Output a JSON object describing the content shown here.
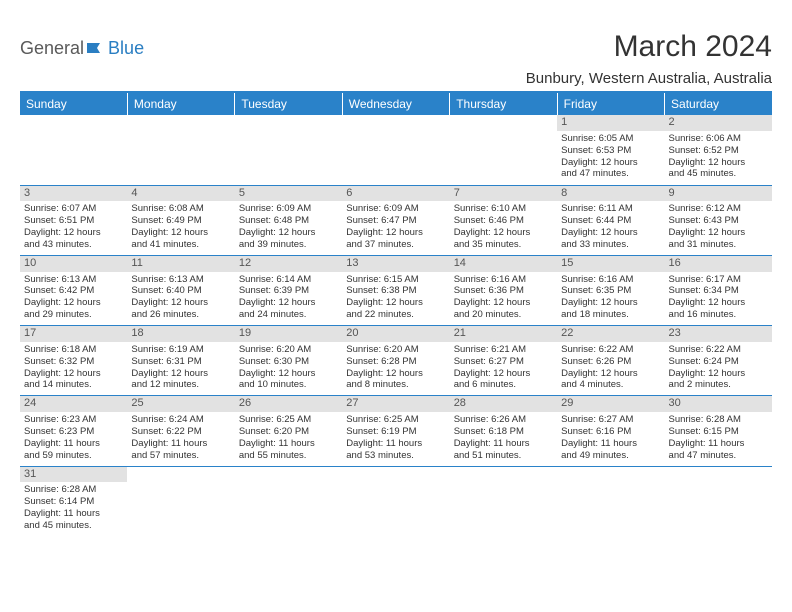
{
  "logo": {
    "text1": "General",
    "text2": "Blue"
  },
  "title": "March 2024",
  "location": "Bunbury, Western Australia, Australia",
  "colors": {
    "header_bg": "#2a82c9",
    "header_text": "#ffffff",
    "daynum_bg": "#e2e2e2",
    "border": "#2a82c9",
    "logo_gray": "#5a5a5a",
    "logo_blue": "#2a7ec2"
  },
  "day_headers": [
    "Sunday",
    "Monday",
    "Tuesday",
    "Wednesday",
    "Thursday",
    "Friday",
    "Saturday"
  ],
  "weeks": [
    [
      {
        "day": "",
        "lines": [
          "",
          "",
          "",
          ""
        ],
        "empty": true
      },
      {
        "day": "",
        "lines": [
          "",
          "",
          "",
          ""
        ],
        "empty": true
      },
      {
        "day": "",
        "lines": [
          "",
          "",
          "",
          ""
        ],
        "empty": true
      },
      {
        "day": "",
        "lines": [
          "",
          "",
          "",
          ""
        ],
        "empty": true
      },
      {
        "day": "",
        "lines": [
          "",
          "",
          "",
          ""
        ],
        "empty": true
      },
      {
        "day": "1",
        "lines": [
          "Sunrise: 6:05 AM",
          "Sunset: 6:53 PM",
          "Daylight: 12 hours",
          "and 47 minutes."
        ]
      },
      {
        "day": "2",
        "lines": [
          "Sunrise: 6:06 AM",
          "Sunset: 6:52 PM",
          "Daylight: 12 hours",
          "and 45 minutes."
        ]
      }
    ],
    [
      {
        "day": "3",
        "lines": [
          "Sunrise: 6:07 AM",
          "Sunset: 6:51 PM",
          "Daylight: 12 hours",
          "and 43 minutes."
        ]
      },
      {
        "day": "4",
        "lines": [
          "Sunrise: 6:08 AM",
          "Sunset: 6:49 PM",
          "Daylight: 12 hours",
          "and 41 minutes."
        ]
      },
      {
        "day": "5",
        "lines": [
          "Sunrise: 6:09 AM",
          "Sunset: 6:48 PM",
          "Daylight: 12 hours",
          "and 39 minutes."
        ]
      },
      {
        "day": "6",
        "lines": [
          "Sunrise: 6:09 AM",
          "Sunset: 6:47 PM",
          "Daylight: 12 hours",
          "and 37 minutes."
        ]
      },
      {
        "day": "7",
        "lines": [
          "Sunrise: 6:10 AM",
          "Sunset: 6:46 PM",
          "Daylight: 12 hours",
          "and 35 minutes."
        ]
      },
      {
        "day": "8",
        "lines": [
          "Sunrise: 6:11 AM",
          "Sunset: 6:44 PM",
          "Daylight: 12 hours",
          "and 33 minutes."
        ]
      },
      {
        "day": "9",
        "lines": [
          "Sunrise: 6:12 AM",
          "Sunset: 6:43 PM",
          "Daylight: 12 hours",
          "and 31 minutes."
        ]
      }
    ],
    [
      {
        "day": "10",
        "lines": [
          "Sunrise: 6:13 AM",
          "Sunset: 6:42 PM",
          "Daylight: 12 hours",
          "and 29 minutes."
        ]
      },
      {
        "day": "11",
        "lines": [
          "Sunrise: 6:13 AM",
          "Sunset: 6:40 PM",
          "Daylight: 12 hours",
          "and 26 minutes."
        ]
      },
      {
        "day": "12",
        "lines": [
          "Sunrise: 6:14 AM",
          "Sunset: 6:39 PM",
          "Daylight: 12 hours",
          "and 24 minutes."
        ]
      },
      {
        "day": "13",
        "lines": [
          "Sunrise: 6:15 AM",
          "Sunset: 6:38 PM",
          "Daylight: 12 hours",
          "and 22 minutes."
        ]
      },
      {
        "day": "14",
        "lines": [
          "Sunrise: 6:16 AM",
          "Sunset: 6:36 PM",
          "Daylight: 12 hours",
          "and 20 minutes."
        ]
      },
      {
        "day": "15",
        "lines": [
          "Sunrise: 6:16 AM",
          "Sunset: 6:35 PM",
          "Daylight: 12 hours",
          "and 18 minutes."
        ]
      },
      {
        "day": "16",
        "lines": [
          "Sunrise: 6:17 AM",
          "Sunset: 6:34 PM",
          "Daylight: 12 hours",
          "and 16 minutes."
        ]
      }
    ],
    [
      {
        "day": "17",
        "lines": [
          "Sunrise: 6:18 AM",
          "Sunset: 6:32 PM",
          "Daylight: 12 hours",
          "and 14 minutes."
        ]
      },
      {
        "day": "18",
        "lines": [
          "Sunrise: 6:19 AM",
          "Sunset: 6:31 PM",
          "Daylight: 12 hours",
          "and 12 minutes."
        ]
      },
      {
        "day": "19",
        "lines": [
          "Sunrise: 6:20 AM",
          "Sunset: 6:30 PM",
          "Daylight: 12 hours",
          "and 10 minutes."
        ]
      },
      {
        "day": "20",
        "lines": [
          "Sunrise: 6:20 AM",
          "Sunset: 6:28 PM",
          "Daylight: 12 hours",
          "and 8 minutes."
        ]
      },
      {
        "day": "21",
        "lines": [
          "Sunrise: 6:21 AM",
          "Sunset: 6:27 PM",
          "Daylight: 12 hours",
          "and 6 minutes."
        ]
      },
      {
        "day": "22",
        "lines": [
          "Sunrise: 6:22 AM",
          "Sunset: 6:26 PM",
          "Daylight: 12 hours",
          "and 4 minutes."
        ]
      },
      {
        "day": "23",
        "lines": [
          "Sunrise: 6:22 AM",
          "Sunset: 6:24 PM",
          "Daylight: 12 hours",
          "and 2 minutes."
        ]
      }
    ],
    [
      {
        "day": "24",
        "lines": [
          "Sunrise: 6:23 AM",
          "Sunset: 6:23 PM",
          "Daylight: 11 hours",
          "and 59 minutes."
        ]
      },
      {
        "day": "25",
        "lines": [
          "Sunrise: 6:24 AM",
          "Sunset: 6:22 PM",
          "Daylight: 11 hours",
          "and 57 minutes."
        ]
      },
      {
        "day": "26",
        "lines": [
          "Sunrise: 6:25 AM",
          "Sunset: 6:20 PM",
          "Daylight: 11 hours",
          "and 55 minutes."
        ]
      },
      {
        "day": "27",
        "lines": [
          "Sunrise: 6:25 AM",
          "Sunset: 6:19 PM",
          "Daylight: 11 hours",
          "and 53 minutes."
        ]
      },
      {
        "day": "28",
        "lines": [
          "Sunrise: 6:26 AM",
          "Sunset: 6:18 PM",
          "Daylight: 11 hours",
          "and 51 minutes."
        ]
      },
      {
        "day": "29",
        "lines": [
          "Sunrise: 6:27 AM",
          "Sunset: 6:16 PM",
          "Daylight: 11 hours",
          "and 49 minutes."
        ]
      },
      {
        "day": "30",
        "lines": [
          "Sunrise: 6:28 AM",
          "Sunset: 6:15 PM",
          "Daylight: 11 hours",
          "and 47 minutes."
        ]
      }
    ],
    [
      {
        "day": "31",
        "lines": [
          "Sunrise: 6:28 AM",
          "Sunset: 6:14 PM",
          "Daylight: 11 hours",
          "and 45 minutes."
        ]
      },
      {
        "day": "",
        "lines": [
          "",
          "",
          "",
          ""
        ],
        "empty": true
      },
      {
        "day": "",
        "lines": [
          "",
          "",
          "",
          ""
        ],
        "empty": true
      },
      {
        "day": "",
        "lines": [
          "",
          "",
          "",
          ""
        ],
        "empty": true
      },
      {
        "day": "",
        "lines": [
          "",
          "",
          "",
          ""
        ],
        "empty": true
      },
      {
        "day": "",
        "lines": [
          "",
          "",
          "",
          ""
        ],
        "empty": true
      },
      {
        "day": "",
        "lines": [
          "",
          "",
          "",
          ""
        ],
        "empty": true
      }
    ]
  ]
}
